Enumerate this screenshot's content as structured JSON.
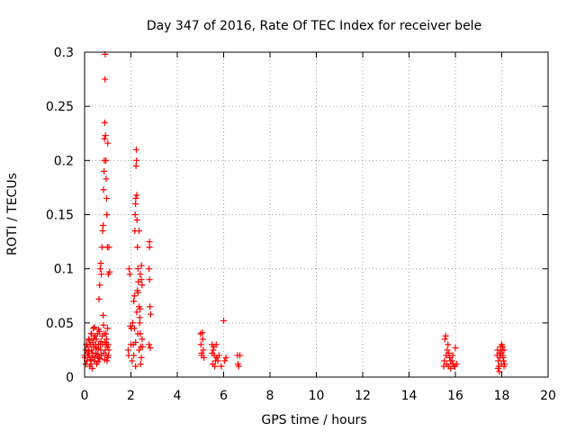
{
  "chart_data": {
    "type": "scatter",
    "title": "Day 347 of 2016, Rate Of TEC Index for receiver bele",
    "xlabel": "GPS time / hours",
    "ylabel": "ROTI / TECUs",
    "xlim": [
      0,
      20
    ],
    "ylim": [
      0,
      0.3
    ],
    "xticks": [
      0,
      2,
      4,
      6,
      8,
      10,
      12,
      14,
      16,
      18,
      20
    ],
    "yticks": [
      0,
      0.05,
      0.1,
      0.15,
      0.2,
      0.25,
      0.3
    ],
    "xtick_labels": [
      "0",
      "2",
      "4",
      "6",
      "8",
      "10",
      "12",
      "14",
      "16",
      "18",
      "20"
    ],
    "ytick_labels": [
      "0",
      "0.05",
      "0.1",
      "0.15",
      "0.2",
      "0.25",
      "0.3"
    ],
    "grid": true,
    "marker": "+",
    "color": "#ff0000",
    "series": [
      {
        "name": "ROTI",
        "points": [
          [
            0.0,
            0.02
          ],
          [
            0.02,
            0.018
          ],
          [
            0.05,
            0.025
          ],
          [
            0.08,
            0.03
          ],
          [
            0.1,
            0.015
          ],
          [
            0.12,
            0.022
          ],
          [
            0.15,
            0.028
          ],
          [
            0.18,
            0.035
          ],
          [
            0.2,
            0.02
          ],
          [
            0.22,
            0.01
          ],
          [
            0.25,
            0.03
          ],
          [
            0.28,
            0.04
          ],
          [
            0.3,
            0.025
          ],
          [
            0.32,
            0.018
          ],
          [
            0.35,
            0.032
          ],
          [
            0.38,
            0.045
          ],
          [
            0.4,
            0.028
          ],
          [
            0.42,
            0.015
          ],
          [
            0.45,
            0.038
          ],
          [
            0.48,
            0.022
          ],
          [
            0.5,
            0.035
          ],
          [
            0.52,
            0.012
          ],
          [
            0.55,
            0.04
          ],
          [
            0.58,
            0.026
          ],
          [
            0.6,
            0.03
          ],
          [
            0.62,
            0.018
          ],
          [
            0.65,
            0.042
          ],
          [
            0.68,
            0.03
          ],
          [
            0.7,
            0.025
          ],
          [
            0.72,
            0.02
          ],
          [
            0.05,
            0.012
          ],
          [
            0.1,
            0.03
          ],
          [
            0.15,
            0.02
          ],
          [
            0.2,
            0.034
          ],
          [
            0.25,
            0.016
          ],
          [
            0.3,
            0.04
          ],
          [
            0.35,
            0.022
          ],
          [
            0.4,
            0.036
          ],
          [
            0.45,
            0.019
          ],
          [
            0.5,
            0.027
          ],
          [
            0.55,
            0.021
          ],
          [
            0.6,
            0.044
          ],
          [
            0.65,
            0.017
          ],
          [
            0.7,
            0.033
          ],
          [
            0.33,
            0.008
          ],
          [
            0.42,
            0.046
          ],
          [
            0.28,
            0.012
          ],
          [
            0.18,
            0.024
          ],
          [
            0.48,
            0.03
          ],
          [
            0.58,
            0.014
          ],
          [
            0.62,
            0.072
          ],
          [
            0.65,
            0.085
          ],
          [
            0.68,
            0.1
          ],
          [
            0.7,
            0.105
          ],
          [
            0.72,
            0.095
          ],
          [
            0.75,
            0.12
          ],
          [
            0.78,
            0.135
          ],
          [
            0.8,
            0.14
          ],
          [
            0.82,
            0.173
          ],
          [
            0.84,
            0.19
          ],
          [
            0.85,
            0.2
          ],
          [
            0.86,
            0.22
          ],
          [
            0.87,
            0.235
          ],
          [
            0.88,
            0.275
          ],
          [
            0.89,
            0.298
          ],
          [
            0.9,
            0.223
          ],
          [
            0.92,
            0.2
          ],
          [
            0.93,
            0.183
          ],
          [
            0.95,
            0.165
          ],
          [
            0.96,
            0.15
          ],
          [
            0.98,
            0.12
          ],
          [
            1.0,
            0.216
          ],
          [
            1.02,
            0.095
          ],
          [
            1.05,
            0.12
          ],
          [
            1.08,
            0.097
          ],
          [
            0.8,
            0.057
          ],
          [
            0.82,
            0.048
          ],
          [
            0.85,
            0.04
          ],
          [
            0.88,
            0.032
          ],
          [
            0.9,
            0.025
          ],
          [
            0.93,
            0.02
          ],
          [
            0.95,
            0.035
          ],
          [
            0.98,
            0.028
          ],
          [
            1.0,
            0.018
          ],
          [
            1.02,
            0.03
          ],
          [
            0.78,
            0.03
          ],
          [
            0.83,
            0.022
          ],
          [
            0.92,
            0.04
          ],
          [
            0.97,
            0.015
          ],
          [
            1.05,
            0.025
          ],
          [
            0.76,
            0.038
          ],
          [
            0.86,
            0.016
          ],
          [
            0.94,
            0.03
          ],
          [
            1.03,
            0.02
          ],
          [
            0.99,
            0.045
          ],
          [
            1.88,
            0.025
          ],
          [
            1.9,
            0.02
          ],
          [
            1.92,
            0.1
          ],
          [
            1.95,
            0.095
          ],
          [
            1.97,
            0.047
          ],
          [
            2.0,
            0.03
          ],
          [
            2.02,
            0.045
          ],
          [
            2.05,
            0.015
          ],
          [
            2.08,
            0.05
          ],
          [
            2.1,
            0.03
          ],
          [
            2.12,
            0.07
          ],
          [
            2.15,
            0.075
          ],
          [
            2.17,
            0.135
          ],
          [
            2.18,
            0.15
          ],
          [
            2.2,
            0.16
          ],
          [
            2.21,
            0.165
          ],
          [
            2.22,
            0.195
          ],
          [
            2.23,
            0.21
          ],
          [
            2.24,
            0.2
          ],
          [
            2.25,
            0.168
          ],
          [
            2.26,
            0.145
          ],
          [
            2.28,
            0.12
          ],
          [
            2.3,
            0.1
          ],
          [
            2.32,
            0.088
          ],
          [
            2.35,
            0.065
          ],
          [
            2.38,
            0.05
          ],
          [
            2.4,
            0.04
          ],
          [
            2.42,
            0.028
          ],
          [
            2.45,
            0.018
          ],
          [
            2.48,
            0.035
          ],
          [
            2.12,
            0.02
          ],
          [
            2.15,
            0.045
          ],
          [
            2.2,
            0.032
          ],
          [
            2.25,
            0.06
          ],
          [
            2.3,
            0.078
          ],
          [
            2.35,
            0.025
          ],
          [
            2.38,
            0.055
          ],
          [
            2.42,
            0.012
          ],
          [
            2.45,
            0.09
          ],
          [
            2.48,
            0.085
          ],
          [
            2.2,
            0.01
          ],
          [
            2.3,
            0.04
          ],
          [
            2.4,
            0.063
          ],
          [
            2.5,
            0.028
          ],
          [
            2.4,
            0.095
          ],
          [
            2.45,
            0.103
          ],
          [
            2.35,
            0.135
          ],
          [
            2.28,
            0.08
          ],
          [
            2.78,
            0.1
          ],
          [
            2.8,
            0.12
          ],
          [
            2.82,
            0.065
          ],
          [
            2.85,
            0.058
          ],
          [
            2.8,
            0.09
          ],
          [
            2.78,
            0.03
          ],
          [
            2.8,
            0.125
          ],
          [
            2.83,
            0.027
          ],
          [
            5.0,
            0.04
          ],
          [
            5.02,
            0.03
          ],
          [
            5.05,
            0.02
          ],
          [
            5.08,
            0.041
          ],
          [
            5.1,
            0.035
          ],
          [
            5.12,
            0.025
          ],
          [
            5.15,
            0.018
          ],
          [
            5.05,
            0.022
          ],
          [
            5.5,
            0.03
          ],
          [
            5.55,
            0.025
          ],
          [
            5.6,
            0.02
          ],
          [
            5.65,
            0.015
          ],
          [
            5.7,
            0.018
          ],
          [
            5.52,
            0.012
          ],
          [
            5.58,
            0.028
          ],
          [
            5.62,
            0.01
          ],
          [
            5.68,
            0.03
          ],
          [
            5.5,
            0.022
          ],
          [
            5.75,
            0.015
          ],
          [
            5.8,
            0.02
          ],
          [
            5.9,
            0.01
          ],
          [
            6.0,
            0.052
          ],
          [
            6.05,
            0.015
          ],
          [
            6.1,
            0.018
          ],
          [
            6.6,
            0.02
          ],
          [
            6.65,
            0.01
          ],
          [
            6.7,
            0.02
          ],
          [
            6.62,
            0.012
          ],
          [
            15.5,
            0.01
          ],
          [
            15.52,
            0.015
          ],
          [
            15.55,
            0.035
          ],
          [
            15.58,
            0.038
          ],
          [
            15.6,
            0.02
          ],
          [
            15.62,
            0.012
          ],
          [
            15.65,
            0.025
          ],
          [
            15.7,
            0.01
          ],
          [
            15.75,
            0.018
          ],
          [
            15.8,
            0.008
          ],
          [
            15.85,
            0.015
          ],
          [
            15.9,
            0.012
          ],
          [
            15.95,
            0.01
          ],
          [
            16.0,
            0.027
          ],
          [
            16.05,
            0.012
          ],
          [
            15.68,
            0.03
          ],
          [
            15.72,
            0.022
          ],
          [
            15.78,
            0.015
          ],
          [
            15.88,
            0.02
          ],
          [
            15.98,
            0.01
          ],
          [
            17.8,
            0.02
          ],
          [
            17.82,
            0.025
          ],
          [
            17.85,
            0.015
          ],
          [
            17.88,
            0.01
          ],
          [
            17.9,
            0.022
          ],
          [
            17.92,
            0.018
          ],
          [
            17.95,
            0.028
          ],
          [
            17.98,
            0.012
          ],
          [
            18.0,
            0.03
          ],
          [
            18.02,
            0.025
          ],
          [
            18.05,
            0.02
          ],
          [
            18.08,
            0.015
          ],
          [
            18.1,
            0.01
          ],
          [
            18.12,
            0.012
          ],
          [
            17.84,
            0.008
          ],
          [
            17.9,
            0.005
          ],
          [
            17.96,
            0.022
          ],
          [
            18.04,
            0.028
          ],
          [
            18.06,
            0.018
          ],
          [
            18.1,
            0.025
          ]
        ]
      }
    ]
  }
}
